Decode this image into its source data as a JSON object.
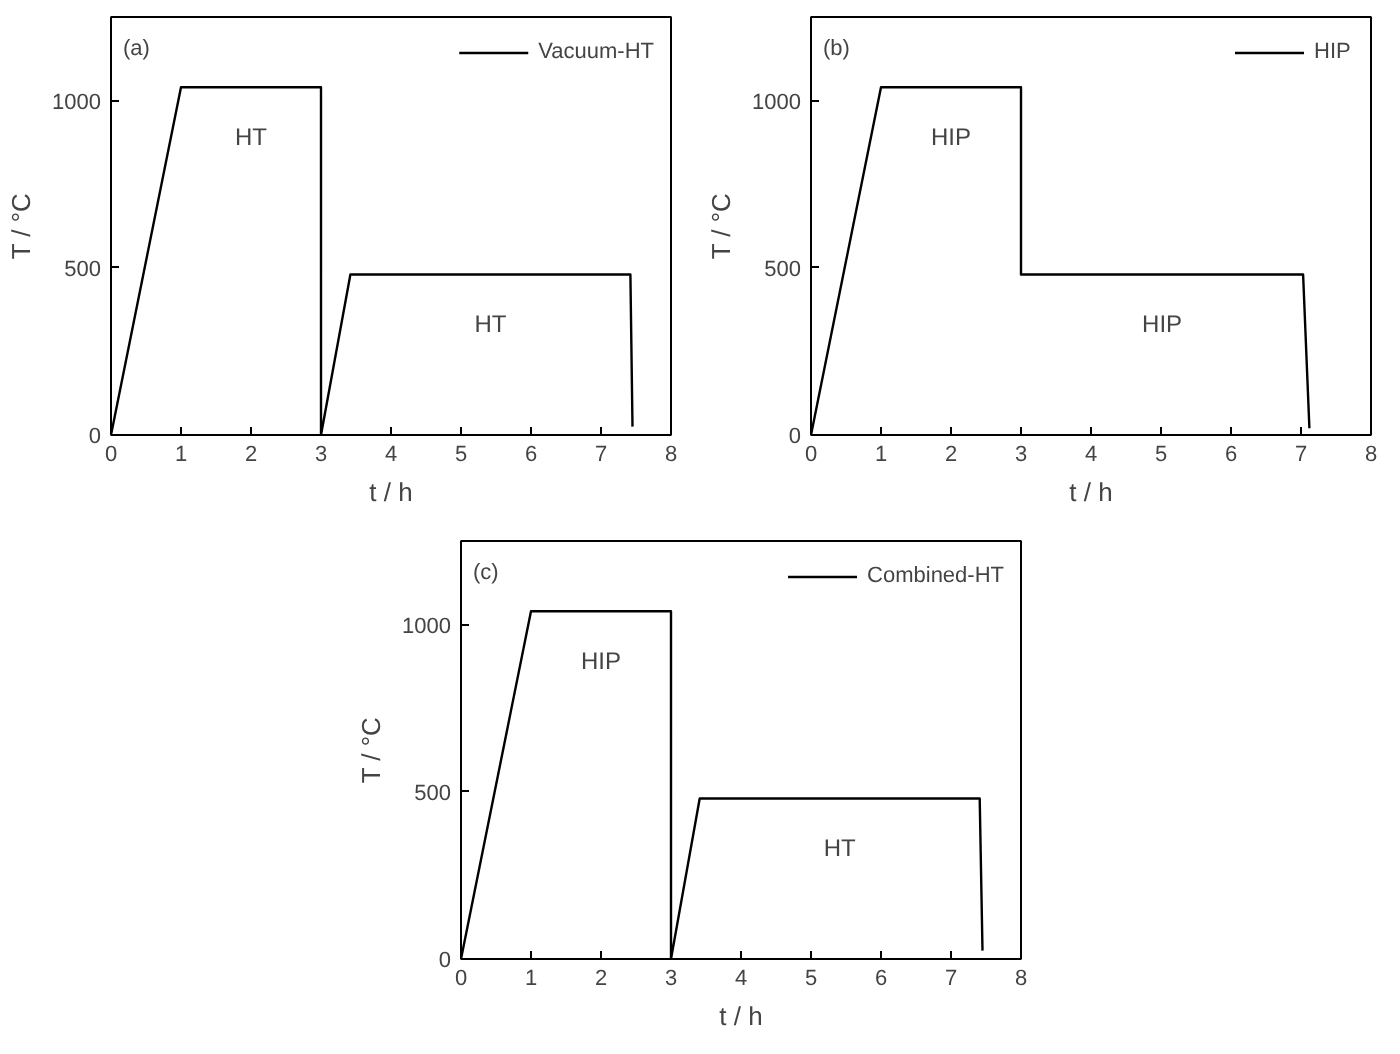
{
  "chart_data": [
    {
      "type": "line",
      "xlabel": "t / h",
      "ylabel": "T / °C",
      "xlim": [
        0,
        8
      ],
      "ylim": [
        0,
        1250
      ],
      "xticks": [
        0,
        1,
        2,
        3,
        4,
        5,
        6,
        7,
        8
      ],
      "yticks": [
        0,
        500,
        1000
      ],
      "legend": "top right",
      "grid": false,
      "annotations": [
        "(a)",
        "HT",
        "HT"
      ],
      "series": [
        {
          "name": "Vacuum-HT",
          "color": "#000000",
          "x": [
            0,
            1,
            3,
            3,
            3.42,
            7.42,
            7.45
          ],
          "values": [
            0,
            1040,
            1040,
            0,
            480,
            480,
            25
          ]
        }
      ]
    },
    {
      "type": "line",
      "xlabel": "t / h",
      "ylabel": "T / °C",
      "xlim": [
        0,
        8
      ],
      "ylim": [
        0,
        1250
      ],
      "xticks": [
        0,
        1,
        2,
        3,
        4,
        5,
        6,
        7,
        8
      ],
      "yticks": [
        0,
        500,
        1000
      ],
      "legend": "top right",
      "grid": false,
      "annotations": [
        "(b)",
        "HIP",
        "HIP"
      ],
      "series": [
        {
          "name": "HIP",
          "color": "#000000",
          "x": [
            0,
            1,
            3,
            3,
            7.03,
            7.12
          ],
          "values": [
            0,
            1040,
            1040,
            480,
            480,
            20
          ]
        }
      ]
    },
    {
      "type": "line",
      "xlabel": "t / h",
      "ylabel": "T / °C",
      "xlim": [
        0,
        8
      ],
      "ylim": [
        0,
        1250
      ],
      "xticks": [
        0,
        1,
        2,
        3,
        4,
        5,
        6,
        7,
        8
      ],
      "yticks": [
        0,
        500,
        1000
      ],
      "legend": "top right",
      "grid": false,
      "annotations": [
        "(c)",
        "HIP",
        "HT"
      ],
      "series": [
        {
          "name": "Combined-HT",
          "color": "#000000",
          "x": [
            0,
            1,
            3,
            3,
            3.41,
            7.41,
            7.45
          ],
          "values": [
            0,
            1040,
            1040,
            0,
            480,
            480,
            25
          ]
        }
      ]
    }
  ]
}
